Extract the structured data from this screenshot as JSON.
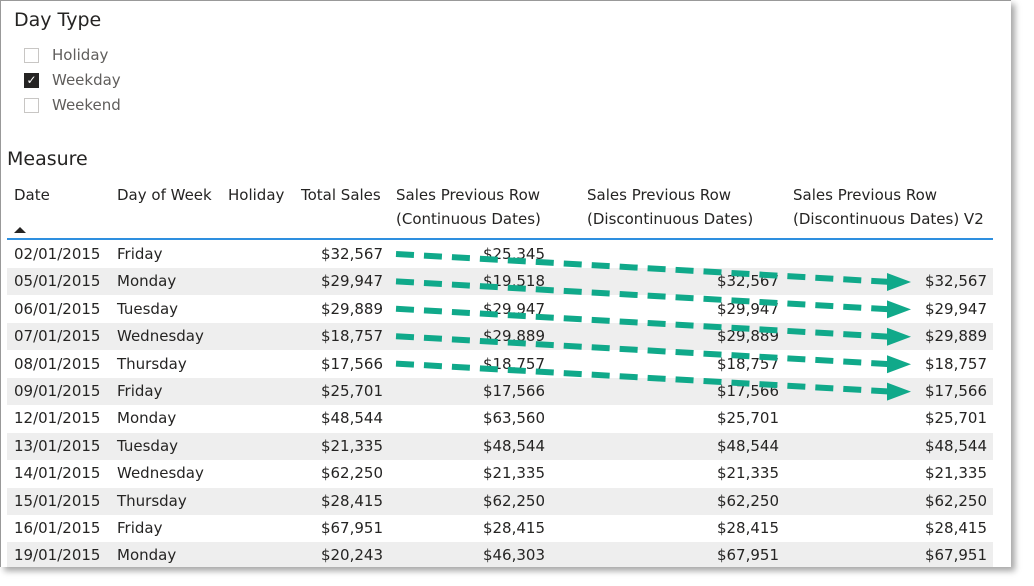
{
  "slicer": {
    "title": "Day Type",
    "options": [
      {
        "label": "Holiday",
        "checked": false
      },
      {
        "label": "Weekday",
        "checked": true
      },
      {
        "label": "Weekend",
        "checked": false
      }
    ]
  },
  "table": {
    "title": "Measure",
    "headers": [
      "Date",
      "Day of Week",
      "Holiday",
      "Total Sales",
      "Sales Previous Row",
      "(Continuous Dates)",
      "Sales Previous Row",
      "(Discontinuous Dates)",
      "Sales Previous Row",
      "(Discontinuous Dates) V2"
    ],
    "rows": [
      [
        "02/01/2015",
        "Friday",
        "",
        "$32,567",
        "$25,345",
        "",
        ""
      ],
      [
        "05/01/2015",
        "Monday",
        "",
        "$29,947",
        "$19,518",
        "$32,567",
        "$32,567"
      ],
      [
        "06/01/2015",
        "Tuesday",
        "",
        "$29,889",
        "$29,947",
        "$29,947",
        "$29,947"
      ],
      [
        "07/01/2015",
        "Wednesday",
        "",
        "$18,757",
        "$29,889",
        "$29,889",
        "$29,889"
      ],
      [
        "08/01/2015",
        "Thursday",
        "",
        "$17,566",
        "$18,757",
        "$18,757",
        "$18,757"
      ],
      [
        "09/01/2015",
        "Friday",
        "",
        "$25,701",
        "$17,566",
        "$17,566",
        "$17,566"
      ],
      [
        "12/01/2015",
        "Monday",
        "",
        "$48,544",
        "$63,560",
        "$25,701",
        "$25,701"
      ],
      [
        "13/01/2015",
        "Tuesday",
        "",
        "$21,335",
        "$48,544",
        "$48,544",
        "$48,544"
      ],
      [
        "14/01/2015",
        "Wednesday",
        "",
        "$62,250",
        "$21,335",
        "$21,335",
        "$21,335"
      ],
      [
        "15/01/2015",
        "Thursday",
        "",
        "$28,415",
        "$62,250",
        "$62,250",
        "$62,250"
      ],
      [
        "16/01/2015",
        "Friday",
        "",
        "$67,951",
        "$28,415",
        "$28,415",
        "$28,415"
      ],
      [
        "19/01/2015",
        "Monday",
        "",
        "$20,243",
        "$46,303",
        "$67,951",
        "$67,951"
      ]
    ]
  },
  "colors": {
    "accent": "#2e8fdf",
    "arrow": "#10a98a"
  }
}
